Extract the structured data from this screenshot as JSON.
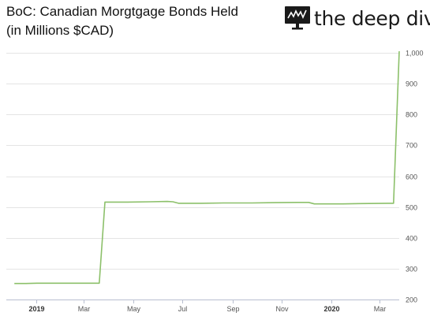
{
  "header": {
    "title_line1": "BoC: Canadian Morgtgage Bonds Held",
    "title_line2": "(in Millions $CAD)"
  },
  "brand": {
    "name": "the deep dive",
    "icon": "monitor-chart-icon"
  },
  "chart_data": {
    "type": "line",
    "title": "BoC: Canadian Morgtgage Bonds Held (in Millions $CAD)",
    "xlabel": "",
    "ylabel": "",
    "ylim": [
      200,
      1000
    ],
    "y_ticks": [
      "200",
      "300",
      "400",
      "500",
      "600",
      "700",
      "800",
      "900",
      "1,000"
    ],
    "y_tick_values": [
      200,
      300,
      400,
      500,
      600,
      700,
      800,
      900,
      1000
    ],
    "x_ticks": [
      {
        "label": "2019",
        "date": "2019-01-01",
        "bold": true
      },
      {
        "label": "Mar",
        "date": "2019-03-01",
        "bold": false
      },
      {
        "label": "May",
        "date": "2019-05-01",
        "bold": false
      },
      {
        "label": "Jul",
        "date": "2019-07-01",
        "bold": false
      },
      {
        "label": "Sep",
        "date": "2019-09-01",
        "bold": false
      },
      {
        "label": "Nov",
        "date": "2019-11-01",
        "bold": false
      },
      {
        "label": "2020",
        "date": "2020-01-01",
        "bold": true
      },
      {
        "label": "Mar",
        "date": "2020-03-01",
        "bold": false
      }
    ],
    "xlim": [
      "2018-11-25",
      "2020-03-25"
    ],
    "grid": "horizontal",
    "line_color": "#8cc06a",
    "series": [
      {
        "name": "",
        "points": [
          {
            "x": "2018-12-05",
            "y": 252
          },
          {
            "x": "2018-12-19",
            "y": 252
          },
          {
            "x": "2019-01-02",
            "y": 253
          },
          {
            "x": "2019-02-06",
            "y": 253
          },
          {
            "x": "2019-03-13",
            "y": 253
          },
          {
            "x": "2019-03-20",
            "y": 253
          },
          {
            "x": "2019-03-27",
            "y": 516
          },
          {
            "x": "2019-04-24",
            "y": 516
          },
          {
            "x": "2019-05-22",
            "y": 517
          },
          {
            "x": "2019-06-12",
            "y": 518
          },
          {
            "x": "2019-06-19",
            "y": 517
          },
          {
            "x": "2019-06-26",
            "y": 512
          },
          {
            "x": "2019-07-24",
            "y": 512
          },
          {
            "x": "2019-08-21",
            "y": 513
          },
          {
            "x": "2019-09-25",
            "y": 513
          },
          {
            "x": "2019-10-23",
            "y": 514
          },
          {
            "x": "2019-11-20",
            "y": 515
          },
          {
            "x": "2019-12-04",
            "y": 515
          },
          {
            "x": "2019-12-11",
            "y": 510
          },
          {
            "x": "2020-01-15",
            "y": 510
          },
          {
            "x": "2020-02-05",
            "y": 511
          },
          {
            "x": "2020-03-11",
            "y": 512
          },
          {
            "x": "2020-03-18",
            "y": 512
          },
          {
            "x": "2020-03-25",
            "y": 1005
          }
        ]
      }
    ]
  }
}
